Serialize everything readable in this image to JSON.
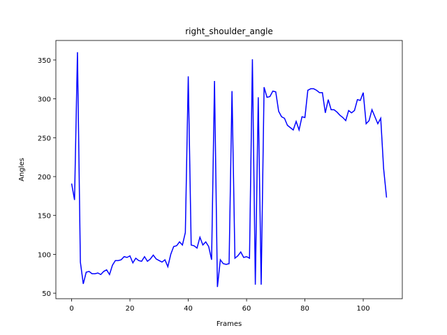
{
  "chart_data": {
    "type": "line",
    "title": "right_shoulder_angle",
    "x_label": "Frames",
    "y_label": "Angles",
    "x": [
      0,
      1,
      2,
      3,
      4,
      5,
      6,
      7,
      8,
      9,
      10,
      11,
      12,
      13,
      14,
      15,
      16,
      17,
      18,
      19,
      20,
      21,
      22,
      23,
      24,
      25,
      26,
      27,
      28,
      29,
      30,
      31,
      32,
      33,
      34,
      35,
      36,
      37,
      38,
      39,
      40,
      41,
      42,
      43,
      44,
      45,
      46,
      47,
      48,
      49,
      50,
      51,
      52,
      53,
      54,
      55,
      56,
      57,
      58,
      59,
      60,
      61,
      62,
      63,
      64,
      65,
      66,
      67,
      68,
      69,
      70,
      71,
      72,
      73,
      74,
      75,
      76,
      77,
      78,
      79,
      80,
      81,
      82,
      83,
      84,
      85,
      86,
      87,
      88,
      89,
      90,
      91,
      92,
      93,
      94,
      95,
      96,
      97,
      98,
      99,
      100,
      101,
      102,
      103,
      104,
      105,
      106,
      107,
      108
    ],
    "series": [
      {
        "name": "right_shoulder_angle",
        "color": "blue",
        "values": [
          191,
          170,
          360,
          90,
          62,
          77,
          78,
          75,
          75,
          76,
          74,
          78,
          80,
          74,
          86,
          92,
          92,
          93,
          97,
          96,
          98,
          89,
          95,
          92,
          91,
          97,
          91,
          94,
          99,
          94,
          92,
          90,
          93,
          84,
          100,
          110,
          111,
          116,
          112,
          128,
          329,
          112,
          111,
          108,
          122,
          112,
          116,
          110,
          93,
          323,
          58,
          93,
          88,
          87,
          88,
          310,
          95,
          98,
          103,
          96,
          97,
          95,
          351,
          61,
          302,
          61,
          315,
          302,
          303,
          310,
          309,
          284,
          277,
          275,
          266,
          263,
          260,
          271,
          260,
          277,
          276,
          311,
          313,
          313,
          311,
          308,
          308,
          282,
          299,
          286,
          286,
          283,
          279,
          276,
          272,
          285,
          282,
          285,
          299,
          298,
          308,
          268,
          272,
          286,
          277,
          268,
          275,
          210,
          173
        ]
      }
    ],
    "xlim": [
      -5.4,
      113.4
    ],
    "ylim": [
      42.9,
      375.1
    ],
    "xticks": [
      0,
      20,
      40,
      60,
      80,
      100
    ],
    "yticks": [
      50,
      100,
      150,
      200,
      250,
      300,
      350
    ]
  }
}
